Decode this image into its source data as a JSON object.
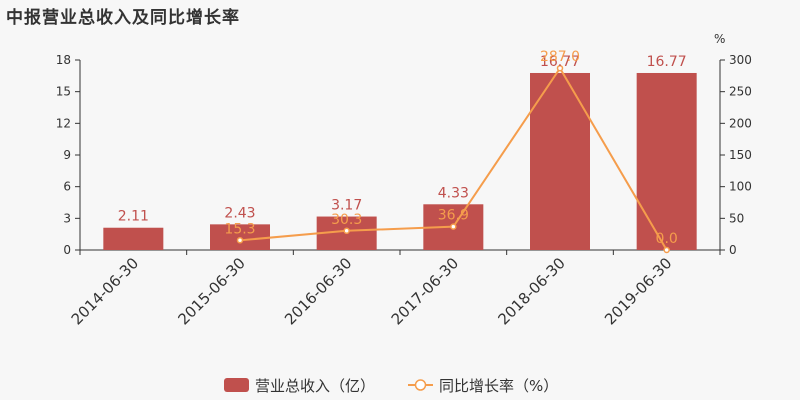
{
  "title": "中报营业总收入及同比增长率",
  "chart_data": {
    "type": "bar",
    "categories": [
      "2014-06-30",
      "2015-06-30",
      "2016-06-30",
      "2017-06-30",
      "2018-06-30",
      "2019-06-30"
    ],
    "series": [
      {
        "name": "营业总收入（亿）",
        "type": "bar",
        "axis": "left",
        "color": "#c0504d",
        "values": [
          2.11,
          2.43,
          3.17,
          4.33,
          16.77,
          16.77
        ],
        "labels": [
          "2.11",
          "2.43",
          "3.17",
          "4.33",
          "16.77",
          "16.77"
        ]
      },
      {
        "name": "同比增长率（%）",
        "type": "line",
        "axis": "right",
        "color": "#f59d4c",
        "values": [
          null,
          15.3,
          30.3,
          36.9,
          287.0,
          0.0
        ],
        "labels": [
          "",
          "15.3",
          "30.3",
          "36.9",
          "287.0",
          "0.0"
        ]
      }
    ],
    "y_left": {
      "ticks": [
        "0",
        "3",
        "6",
        "9",
        "12",
        "15",
        "18"
      ],
      "ylim": [
        0,
        18
      ]
    },
    "y_right": {
      "ticks": [
        "0",
        "50",
        "100",
        "150",
        "200",
        "250",
        "300"
      ],
      "ylim": [
        0,
        300
      ],
      "unit": "%"
    },
    "legend": {
      "position": "bottom"
    },
    "grid": false
  }
}
